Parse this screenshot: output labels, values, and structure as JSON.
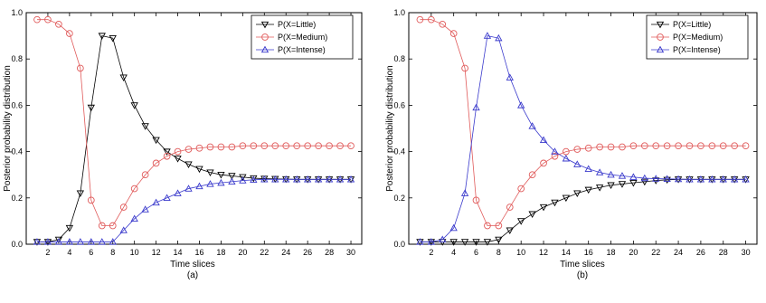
{
  "chart_data": [
    {
      "type": "line",
      "panel_label": "(a)",
      "xlabel": "Time slices",
      "ylabel": "Posterior probability distribution",
      "xlim": [
        0,
        31
      ],
      "ylim": [
        0,
        1.0
      ],
      "x_ticks": [
        2,
        4,
        6,
        8,
        10,
        12,
        14,
        16,
        18,
        20,
        22,
        24,
        26,
        28,
        30
      ],
      "y_ticks": [
        0.0,
        0.2,
        0.4,
        0.6,
        0.8,
        1.0
      ],
      "y_tick_labels": [
        "0.0",
        "0.2",
        "0.4",
        "0.6",
        "0.8",
        "1.0"
      ],
      "grid": false,
      "legend_position": "top-right",
      "x": [
        1,
        2,
        3,
        4,
        5,
        6,
        7,
        8,
        9,
        10,
        11,
        12,
        13,
        14,
        15,
        16,
        17,
        18,
        19,
        20,
        21,
        22,
        23,
        24,
        25,
        26,
        27,
        28,
        29,
        30
      ],
      "series": [
        {
          "name": "P(X=Little)",
          "color": "#000000",
          "marker": "triangle-down",
          "values": [
            0.01,
            0.01,
            0.02,
            0.07,
            0.22,
            0.59,
            0.9,
            0.89,
            0.72,
            0.6,
            0.51,
            0.45,
            0.4,
            0.37,
            0.345,
            0.325,
            0.31,
            0.3,
            0.295,
            0.29,
            0.285,
            0.283,
            0.282,
            0.281,
            0.28,
            0.28,
            0.28,
            0.28,
            0.28,
            0.28
          ]
        },
        {
          "name": "P(X=Medium)",
          "color": "#e05a5a",
          "marker": "circle",
          "values": [
            0.97,
            0.97,
            0.95,
            0.91,
            0.76,
            0.19,
            0.08,
            0.08,
            0.16,
            0.24,
            0.3,
            0.35,
            0.38,
            0.4,
            0.41,
            0.415,
            0.42,
            0.42,
            0.42,
            0.425,
            0.425,
            0.425,
            0.425,
            0.425,
            0.425,
            0.425,
            0.425,
            0.425,
            0.425,
            0.425
          ]
        },
        {
          "name": "P(X=Intense)",
          "color": "#3a3acc",
          "marker": "triangle-up",
          "values": [
            0.01,
            0.01,
            0.01,
            0.01,
            0.01,
            0.01,
            0.01,
            0.01,
            0.06,
            0.11,
            0.15,
            0.18,
            0.2,
            0.22,
            0.24,
            0.25,
            0.26,
            0.265,
            0.27,
            0.275,
            0.278,
            0.28,
            0.28,
            0.28,
            0.28,
            0.28,
            0.28,
            0.28,
            0.28,
            0.28
          ]
        }
      ]
    },
    {
      "type": "line",
      "panel_label": "(b)",
      "xlabel": "Time slices",
      "ylabel": "Posterior probability distribution",
      "xlim": [
        0,
        31
      ],
      "ylim": [
        0,
        1.0
      ],
      "x_ticks": [
        2,
        4,
        6,
        8,
        10,
        12,
        14,
        16,
        18,
        20,
        22,
        24,
        26,
        28,
        30
      ],
      "y_ticks": [
        0.0,
        0.2,
        0.4,
        0.6,
        0.8,
        1.0
      ],
      "y_tick_labels": [
        "0.0",
        "0.2",
        "0.4",
        "0.6",
        "0.8",
        "1.0"
      ],
      "grid": false,
      "legend_position": "top-right",
      "x": [
        1,
        2,
        3,
        4,
        5,
        6,
        7,
        8,
        9,
        10,
        11,
        12,
        13,
        14,
        15,
        16,
        17,
        18,
        19,
        20,
        21,
        22,
        23,
        24,
        25,
        26,
        27,
        28,
        29,
        30
      ],
      "series": [
        {
          "name": "P(X=Little)",
          "color": "#000000",
          "marker": "triangle-down",
          "values": [
            0.01,
            0.01,
            0.01,
            0.01,
            0.01,
            0.01,
            0.01,
            0.02,
            0.06,
            0.1,
            0.13,
            0.16,
            0.18,
            0.2,
            0.22,
            0.235,
            0.245,
            0.255,
            0.26,
            0.265,
            0.27,
            0.275,
            0.278,
            0.28,
            0.28,
            0.28,
            0.28,
            0.28,
            0.28,
            0.28
          ]
        },
        {
          "name": "P(X=Medium)",
          "color": "#e05a5a",
          "marker": "circle",
          "values": [
            0.97,
            0.97,
            0.95,
            0.91,
            0.76,
            0.19,
            0.08,
            0.08,
            0.16,
            0.24,
            0.3,
            0.35,
            0.38,
            0.4,
            0.41,
            0.415,
            0.42,
            0.42,
            0.42,
            0.425,
            0.425,
            0.425,
            0.425,
            0.425,
            0.425,
            0.425,
            0.425,
            0.425,
            0.425,
            0.425
          ]
        },
        {
          "name": "P(X=Intense)",
          "color": "#3a3acc",
          "marker": "triangle-up",
          "values": [
            0.01,
            0.01,
            0.02,
            0.07,
            0.22,
            0.59,
            0.9,
            0.89,
            0.72,
            0.6,
            0.51,
            0.45,
            0.4,
            0.37,
            0.345,
            0.325,
            0.31,
            0.3,
            0.295,
            0.29,
            0.285,
            0.283,
            0.282,
            0.281,
            0.28,
            0.28,
            0.28,
            0.28,
            0.28,
            0.28
          ]
        }
      ]
    }
  ]
}
